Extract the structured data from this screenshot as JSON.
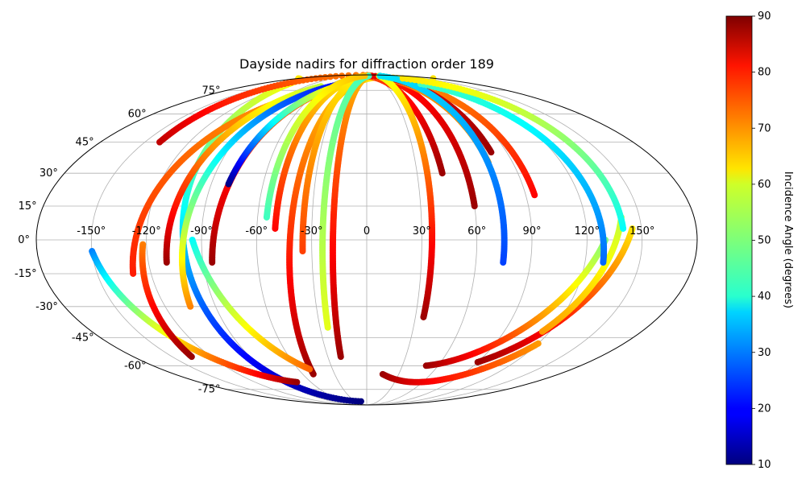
{
  "chart_data": {
    "type": "scatter",
    "projection": "Mollweide",
    "title": "Dayside nadirs for diffraction order 189",
    "grid": true,
    "longitude_ticks": [
      "-150°",
      "-120°",
      "-90°",
      "-60°",
      "-30°",
      "0",
      "30°",
      "60°",
      "90°",
      "120°",
      "150°"
    ],
    "longitude_tick_values": [
      -150,
      -120,
      -90,
      -60,
      -30,
      0,
      30,
      60,
      90,
      120,
      150
    ],
    "latitude_ticks": [
      "75°",
      "60°",
      "45°",
      "30°",
      "15°",
      "0°",
      "-15°",
      "-30°",
      "-45°",
      "-60°",
      "-75°"
    ],
    "latitude_tick_values": [
      75,
      60,
      45,
      30,
      15,
      0,
      -15,
      -30,
      -45,
      -60,
      -75
    ],
    "colorbar": {
      "label": "Incidence Angle (degrees)",
      "colormap": "jet",
      "range": [
        10,
        90
      ],
      "ticks": [
        "90",
        "80",
        "70",
        "60",
        "50",
        "40",
        "30",
        "20",
        "10"
      ],
      "tick_values": [
        90,
        80,
        70,
        60,
        50,
        40,
        30,
        20,
        10
      ]
    },
    "tracks": [
      {
        "lon_start": -15,
        "lat_start": -85,
        "lon_end": 175,
        "lat_end": 85,
        "incidence_range": [
          10,
          62
        ]
      },
      {
        "lon_start": 110,
        "lat_start": 82,
        "lon_end": -50,
        "lat_end": -65,
        "incidence_range": [
          60,
          88
        ]
      },
      {
        "lon_start": -140,
        "lat_start": 45,
        "lon_end": 25,
        "lat_end": 88,
        "incidence_range": [
          85,
          70
        ]
      },
      {
        "lon_start": -150,
        "lat_start": -5,
        "lon_end": -75,
        "lat_end": -70,
        "incidence_range": [
          30,
          88
        ]
      },
      {
        "lon_start": -130,
        "lat_start": -15,
        "lon_end": -80,
        "lat_end": 70,
        "incidence_range": [
          78,
          68
        ]
      },
      {
        "lon_start": -110,
        "lat_start": -10,
        "lon_end": -68,
        "lat_end": 78,
        "incidence_range": [
          88,
          55
        ]
      },
      {
        "lon_start": -122,
        "lat_start": -2,
        "lon_end": -135,
        "lat_end": -55,
        "incidence_range": [
          70,
          88
        ]
      },
      {
        "lon_start": -95,
        "lat_start": 0,
        "lon_end": -50,
        "lat_end": -62,
        "incidence_range": [
          40,
          72
        ]
      },
      {
        "lon_start": -105,
        "lat_start": -30,
        "lon_end": -40,
        "lat_end": 80,
        "incidence_range": [
          70,
          20
        ]
      },
      {
        "lon_start": -85,
        "lat_start": -10,
        "lon_end": -30,
        "lat_end": 80,
        "incidence_range": [
          88,
          68
        ]
      },
      {
        "lon_start": -80,
        "lat_start": 25,
        "lon_end": -35,
        "lat_end": 80,
        "incidence_range": [
          10,
          65
        ]
      },
      {
        "lon_start": -50,
        "lat_start": 5,
        "lon_end": 20,
        "lat_end": 88,
        "incidence_range": [
          80,
          60
        ]
      },
      {
        "lon_start": -20,
        "lat_start": -55,
        "lon_end": 15,
        "lat_end": 88,
        "incidence_range": [
          88,
          65
        ]
      },
      {
        "lon_start": 45,
        "lat_start": 30,
        "lon_end": -5,
        "lat_end": 88,
        "incidence_range": [
          88,
          75
        ]
      },
      {
        "lon_start": 60,
        "lat_start": 15,
        "lon_end": 45,
        "lat_end": 85,
        "incidence_range": [
          88,
          78
        ]
      },
      {
        "lon_start": 95,
        "lat_start": 20,
        "lon_end": 60,
        "lat_end": 85,
        "incidence_range": [
          80,
          68
        ]
      },
      {
        "lon_start": 75,
        "lat_start": 35,
        "lon_end": 5,
        "lat_end": 88,
        "incidence_range": [
          68,
          70
        ]
      },
      {
        "lon_start": 80,
        "lat_start": 40,
        "lon_end": 25,
        "lat_end": 88,
        "incidence_range": [
          88,
          82
        ]
      },
      {
        "lon_start": 35,
        "lat_start": -35,
        "lon_end": 60,
        "lat_end": 88,
        "incidence_range": [
          88,
          58
        ]
      },
      {
        "lon_start": 15,
        "lat_start": -65,
        "lon_end": 120,
        "lat_end": -48,
        "incidence_range": [
          88,
          68
        ]
      },
      {
        "lon_start": 75,
        "lat_start": -10,
        "lon_end": 65,
        "lat_end": 88,
        "incidence_range": [
          25,
          38
        ]
      },
      {
        "lon_start": 90,
        "lat_start": -58,
        "lon_end": 145,
        "lat_end": 5,
        "incidence_range": [
          88,
          62
        ]
      },
      {
        "lon_start": 50,
        "lat_start": -60,
        "lon_end": 130,
        "lat_end": 0,
        "incidence_range": [
          88,
          50
        ]
      },
      {
        "lon_start": 115,
        "lat_start": -42,
        "lon_end": 140,
        "lat_end": 10,
        "incidence_range": [
          68,
          55
        ]
      },
      {
        "lon_start": 130,
        "lat_start": -10,
        "lon_end": 90,
        "lat_end": 80,
        "incidence_range": [
          28,
          45
        ]
      },
      {
        "lon_start": 140,
        "lat_start": 5,
        "lon_end": 95,
        "lat_end": 85,
        "incidence_range": [
          40,
          62
        ]
      },
      {
        "lon_start": 0,
        "lat_start": 88,
        "lon_end": -35,
        "lat_end": -5,
        "incidence_range": [
          60,
          75
        ]
      },
      {
        "lon_start": 10,
        "lat_start": 88,
        "lon_end": -25,
        "lat_end": -40,
        "incidence_range": [
          45,
          58
        ]
      },
      {
        "lon_start": -10,
        "lat_start": 88,
        "lon_end": -55,
        "lat_end": 10,
        "incidence_range": [
          65,
          45
        ]
      }
    ]
  }
}
